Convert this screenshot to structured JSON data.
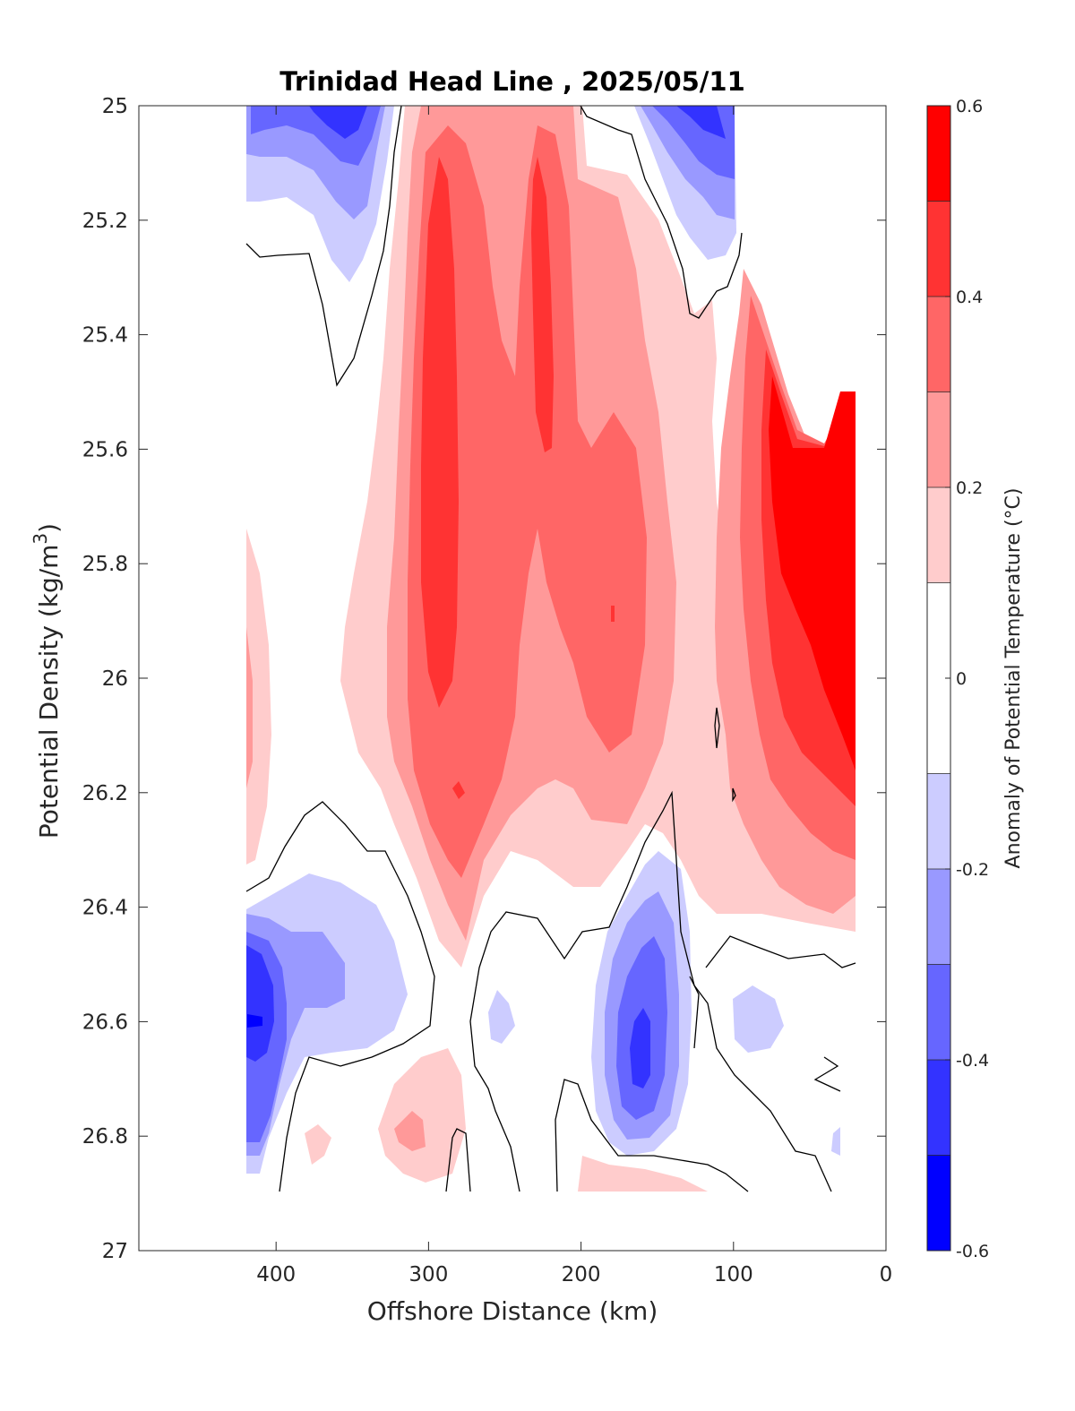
{
  "chart_data": {
    "type": "heatmap",
    "subtype": "filled-contour",
    "title": "Trinidad Head Line , 2025/05/11",
    "xlabel": "Offshore Distance (km)",
    "ylabel": "Potential Density (kg/m³)",
    "ylabel_main": "Potential Density (kg/m",
    "ylabel_sup": "3",
    "ylabel_tail": ")",
    "colorbar_label": "Anomaly of Potential Temperature (°C)",
    "xlim": [
      490,
      0
    ],
    "x_reversed": true,
    "ylim": [
      25,
      27
    ],
    "y_reversed": true,
    "xticks": [
      400,
      300,
      200,
      100,
      0
    ],
    "xtick_labels": [
      "400",
      "300",
      "200",
      "100",
      "0"
    ],
    "yticks": [
      25,
      25.2,
      25.4,
      25.6,
      25.8,
      26,
      26.2,
      26.4,
      26.6,
      26.8,
      27
    ],
    "ytick_labels": [
      "25",
      "25.2",
      "25.4",
      "25.6",
      "25.8",
      "26",
      "26.2",
      "26.4",
      "26.6",
      "26.8",
      "27"
    ],
    "clim": [
      -0.6,
      0.6
    ],
    "cbar_ticks": [
      -0.6,
      -0.4,
      -0.2,
      0,
      0.2,
      0.4,
      0.6
    ],
    "cbar_tick_labels": [
      "-0.6",
      "-0.4",
      "-0.2",
      "0",
      "0.2",
      "0.4",
      "0.6"
    ],
    "levels": [
      -0.6,
      -0.5,
      -0.4,
      -0.3,
      -0.2,
      -0.1,
      0.1,
      0.2,
      0.3,
      0.4,
      0.5,
      0.6
    ],
    "level_colors": [
      "#0000ff",
      "#3333ff",
      "#6666ff",
      "#9999ff",
      "#ccccff",
      "#ffffff",
      "#ffcccc",
      "#ff9999",
      "#ff6666",
      "#ff3333",
      "#ff0000"
    ],
    "features": [
      {
        "name": "cold-core-nw",
        "x": [
          420,
          320
        ],
        "y": [
          25.0,
          25.3
        ],
        "anomaly_min": -0.4
      },
      {
        "name": "cold-core-ne",
        "x": [
          150,
          100
        ],
        "y": [
          25.0,
          25.25
        ],
        "anomaly_min": -0.5
      },
      {
        "name": "warm-core-west",
        "x": [
          330,
          260
        ],
        "y": [
          25.0,
          26.45
        ],
        "anomaly_max": 0.5
      },
      {
        "name": "warm-core-central",
        "x": [
          250,
          200
        ],
        "y": [
          25.0,
          26.2
        ],
        "anomaly_max": 0.5
      },
      {
        "name": "warm-core-inner",
        "x": [
          200,
          150
        ],
        "y": [
          25.6,
          26.3
        ],
        "anomaly_max": 0.4
      },
      {
        "name": "warm-nearshore",
        "x": [
          100,
          20
        ],
        "y": [
          25.3,
          26.45
        ],
        "anomaly_max": 0.6
      },
      {
        "name": "cold-deep-offshore",
        "x": [
          420,
          320
        ],
        "y": [
          26.3,
          26.9
        ],
        "anomaly_min": -0.6
      },
      {
        "name": "cold-deep-central",
        "x": [
          190,
          130
        ],
        "y": [
          26.3,
          26.85
        ],
        "anomaly_min": -0.5
      },
      {
        "name": "warm-deep-patch",
        "x": [
          330,
          280
        ],
        "y": [
          26.65,
          26.9
        ],
        "anomaly_max": 0.3
      }
    ]
  }
}
